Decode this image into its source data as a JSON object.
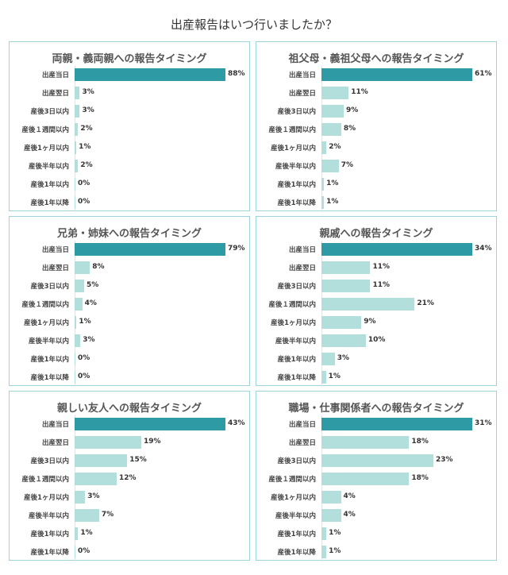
{
  "title": "出産報告はいつ行いましたか？",
  "colors": {
    "highlight": "#2e9aa3",
    "bar": "#b2dfdb",
    "border": "#9fd3da"
  },
  "chart_data": [
    {
      "type": "bar",
      "orientation": "horizontal",
      "title": "両親・義両親への報告タイミング",
      "categories": [
        "出産当日",
        "出産翌日",
        "産後3日以内",
        "産後１週間以内",
        "産後1ヶ月以内",
        "産後半年以内",
        "産後1年以内",
        "産後1年以降"
      ],
      "values": [
        88,
        3,
        3,
        2,
        1,
        2,
        0,
        0
      ],
      "labels": [
        "88%",
        "3%",
        "3%",
        "2%",
        "1%",
        "2%",
        "0%",
        "0%"
      ],
      "unit": "%"
    },
    {
      "type": "bar",
      "orientation": "horizontal",
      "title": "祖父母・義祖父母への報告タイミング",
      "categories": [
        "出産当日",
        "出産翌日",
        "産後3日以内",
        "産後１週間以内",
        "産後1ヶ月以内",
        "産後半年以内",
        "産後1年以内",
        "産後1年以降"
      ],
      "values": [
        61,
        11,
        9,
        8,
        2,
        7,
        1,
        1
      ],
      "labels": [
        "61%",
        "11%",
        "9%",
        "8%",
        "2%",
        "7%",
        "1%",
        "1%"
      ],
      "unit": "%"
    },
    {
      "type": "bar",
      "orientation": "horizontal",
      "title": "兄弟・姉妹への報告タイミング",
      "categories": [
        "出産当日",
        "出産翌日",
        "産後3日以内",
        "産後１週間以内",
        "産後1ヶ月以内",
        "産後半年以内",
        "産後1年以内",
        "産後1年以降"
      ],
      "values": [
        79,
        8,
        5,
        4,
        1,
        3,
        0,
        0
      ],
      "labels": [
        "79%",
        "8%",
        "5%",
        "4%",
        "1%",
        "3%",
        "0%",
        "0%"
      ],
      "unit": "%"
    },
    {
      "type": "bar",
      "orientation": "horizontal",
      "title": "親戚への報告タイミング",
      "categories": [
        "出産当日",
        "出産翌日",
        "産後3日以内",
        "産後１週間以内",
        "産後1ヶ月以内",
        "産後半年以内",
        "産後1年以内",
        "産後1年以降"
      ],
      "values": [
        34,
        11,
        11,
        21,
        9,
        10,
        3,
        1
      ],
      "labels": [
        "34%",
        "11%",
        "11%",
        "21%",
        "9%",
        "10%",
        "3%",
        "1%"
      ],
      "unit": "%"
    },
    {
      "type": "bar",
      "orientation": "horizontal",
      "title": "親しい友人への報告タイミング",
      "categories": [
        "出産当日",
        "出産翌日",
        "産後3日以内",
        "産後１週間以内",
        "産後1ヶ月以内",
        "産後半年以内",
        "産後1年以内",
        "産後1年以降"
      ],
      "values": [
        43,
        19,
        15,
        12,
        3,
        7,
        1,
        0
      ],
      "labels": [
        "43%",
        "19%",
        "15%",
        "12%",
        "3%",
        "7%",
        "1%",
        "0%"
      ],
      "unit": "%"
    },
    {
      "type": "bar",
      "orientation": "horizontal",
      "title": "職場・仕事関係者への報告タイミング",
      "categories": [
        "出産当日",
        "出産翌日",
        "産後3日以内",
        "産後１週間以内",
        "産後1ヶ月以内",
        "産後半年以内",
        "産後1年以内",
        "産後1年以降"
      ],
      "values": [
        31,
        18,
        23,
        18,
        4,
        4,
        1,
        1
      ],
      "labels": [
        "31%",
        "18%",
        "23%",
        "18%",
        "4%",
        "4%",
        "1%",
        "1%"
      ],
      "unit": "%"
    }
  ]
}
